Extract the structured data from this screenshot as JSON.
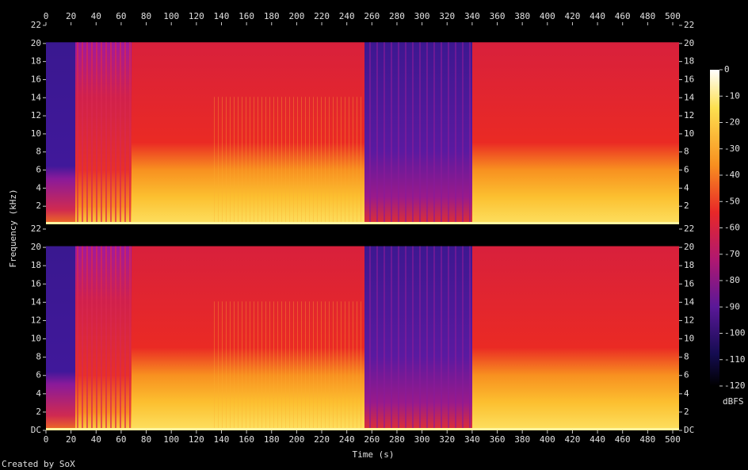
{
  "chart_data": {
    "type": "spectrogram",
    "xlabel": "Time (s)",
    "ylabel": "Frequency (kHz)",
    "xlim": [
      0,
      500
    ],
    "xticks": [
      0,
      20,
      40,
      60,
      80,
      100,
      120,
      140,
      160,
      180,
      200,
      220,
      240,
      260,
      280,
      300,
      320,
      340,
      360,
      380,
      400,
      420,
      440,
      460,
      480,
      500
    ],
    "panels": [
      {
        "ylim": [
          0,
          22
        ],
        "yticks": [
          2,
          4,
          6,
          8,
          10,
          12,
          14,
          16,
          18,
          20,
          22
        ]
      },
      {
        "ylim": [
          0,
          22
        ],
        "yticks": [
          {
            "value": 0,
            "label": "DC"
          },
          2,
          4,
          6,
          8,
          10,
          12,
          14,
          16,
          18,
          20,
          22
        ]
      }
    ],
    "colorbar": {
      "label": "dBFS",
      "lim": [
        -120,
        0
      ],
      "ticks": [
        0,
        -10,
        -20,
        -30,
        -40,
        -50,
        -60,
        -70,
        -80,
        -90,
        -100,
        -110,
        -120
      ]
    },
    "footer": "Created by SoX"
  }
}
